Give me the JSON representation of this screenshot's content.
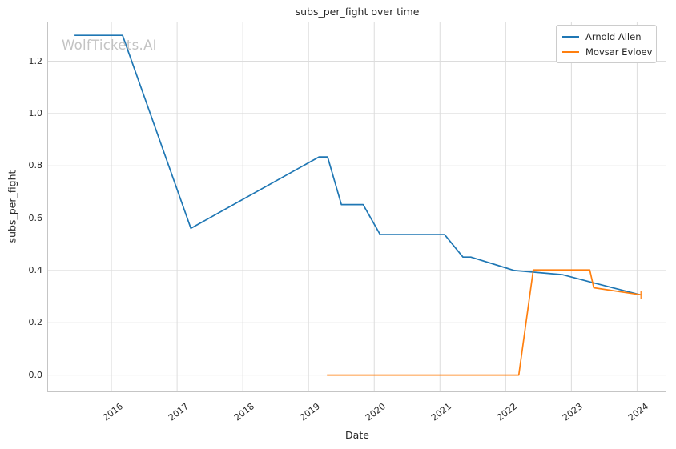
{
  "window": {
    "title": "subs_per_fight over time"
  },
  "colors": {
    "background": "#ffffff",
    "grid": "#dcdcdc",
    "spine": "#c5c5c5",
    "text": "#262626",
    "watermark_color": "#c3c3c3",
    "series_blue": "#1f77b4",
    "series_orange": "#ff7f0e"
  },
  "watermark": "WolfTickets.AI",
  "legend": {
    "position": "upper right",
    "items": [
      {
        "label": "Arnold Allen",
        "color": "#1f77b4"
      },
      {
        "label": "Movsar Evloev",
        "color": "#ff7f0e"
      }
    ]
  },
  "chart_data": {
    "type": "line",
    "title": "subs_per_fight over time",
    "xlabel": "Date",
    "ylabel": "subs_per_fight",
    "x_unit": "decimal_year",
    "xlim": [
      2015.03,
      2024.44
    ],
    "ylim": [
      -0.064,
      1.35
    ],
    "grid": true,
    "legend_position": "upper right",
    "x_ticks": [
      {
        "value": 2016,
        "label": "2016"
      },
      {
        "value": 2017,
        "label": "2017"
      },
      {
        "value": 2018,
        "label": "2018"
      },
      {
        "value": 2019,
        "label": "2019"
      },
      {
        "value": 2020,
        "label": "2020"
      },
      {
        "value": 2021,
        "label": "2021"
      },
      {
        "value": 2022,
        "label": "2022"
      },
      {
        "value": 2023,
        "label": "2023"
      },
      {
        "value": 2024,
        "label": "2024"
      }
    ],
    "y_ticks": [
      {
        "value": 0.0,
        "label": "0.0"
      },
      {
        "value": 0.2,
        "label": "0.2"
      },
      {
        "value": 0.4,
        "label": "0.4"
      },
      {
        "value": 0.6,
        "label": "0.6"
      },
      {
        "value": 0.8,
        "label": "0.8"
      },
      {
        "value": 1.0,
        "label": "1.0"
      },
      {
        "value": 1.2,
        "label": "1.2"
      }
    ],
    "series": [
      {
        "name": "Arnold Allen",
        "color": "#1f77b4",
        "points": [
          [
            2015.44,
            1.299
          ],
          [
            2016.17,
            1.299
          ],
          [
            2017.21,
            0.561
          ],
          [
            2019.16,
            0.834
          ],
          [
            2019.29,
            0.834
          ],
          [
            2019.5,
            0.652
          ],
          [
            2019.83,
            0.652
          ],
          [
            2020.09,
            0.537
          ],
          [
            2021.07,
            0.537
          ],
          [
            2021.35,
            0.451
          ],
          [
            2021.47,
            0.451
          ],
          [
            2022.13,
            0.4
          ],
          [
            2022.86,
            0.384
          ],
          [
            2023.3,
            0.355
          ],
          [
            2024.05,
            0.307
          ]
        ]
      },
      {
        "name": "Movsar Evloev",
        "color": "#ff7f0e",
        "end_marker": "|",
        "points": [
          [
            2019.28,
            0.0
          ],
          [
            2022.2,
            0.0
          ],
          [
            2022.42,
            0.402
          ],
          [
            2023.28,
            0.402
          ],
          [
            2023.34,
            0.334
          ],
          [
            2024.06,
            0.307
          ]
        ]
      }
    ]
  }
}
